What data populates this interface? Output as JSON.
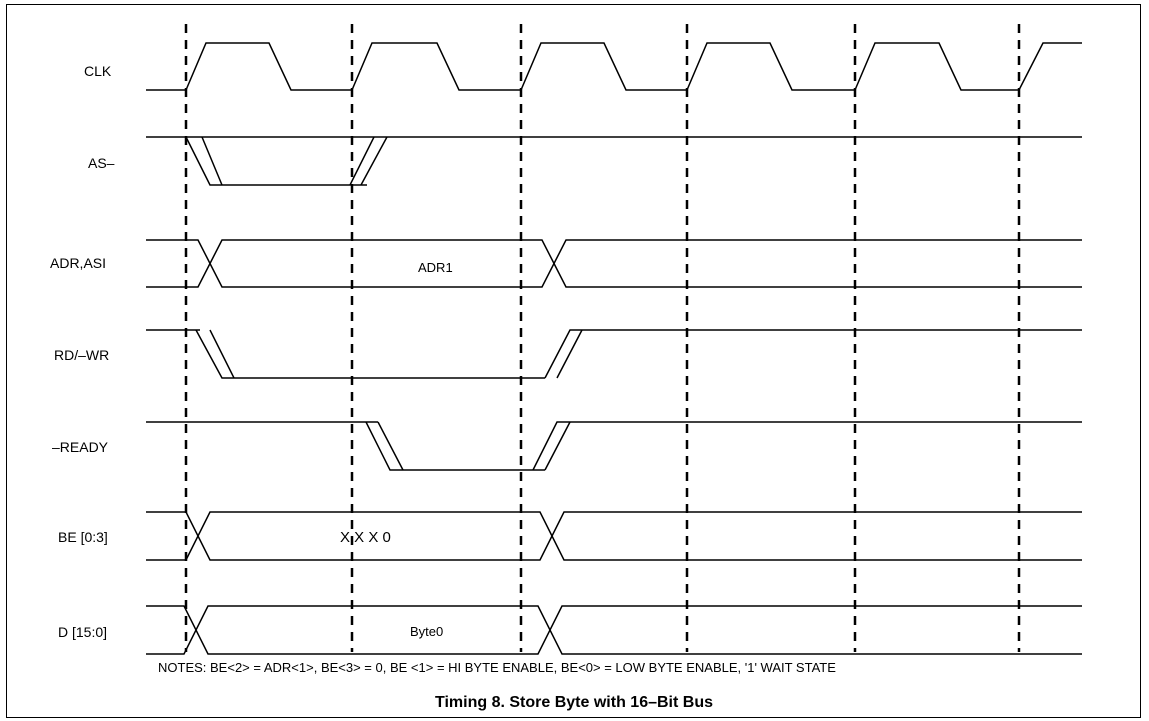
{
  "signals": [
    {
      "id": "clk",
      "label": "CLK"
    },
    {
      "id": "as",
      "label": "AS–"
    },
    {
      "id": "adr",
      "label": "ADR,ASI",
      "value": "ADR1"
    },
    {
      "id": "rdwr",
      "label": "RD/–WR"
    },
    {
      "id": "ready",
      "label": "–READY"
    },
    {
      "id": "be",
      "label": "BE [0:3]",
      "value": "X X X  0"
    },
    {
      "id": "data",
      "label": "D [15:0]",
      "value": "Byte0"
    }
  ],
  "notes": "NOTES:  BE<2> = ADR<1>, BE<3> = 0, BE <1> = HI  BYTE  ENABLE, BE<0> = LOW  BYTE  ENABLE,  '1' WAIT STATE",
  "caption": "Timing 8. Store Byte with 16–Bit Bus"
}
